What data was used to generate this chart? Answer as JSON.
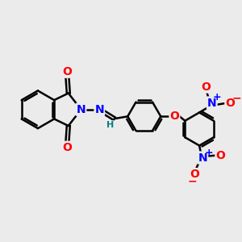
{
  "bg_color": "#ebebeb",
  "bond_color": "#000000",
  "bond_width": 1.8,
  "atom_colors": {
    "N": "#0000ff",
    "O": "#ff0000",
    "H": "#008080"
  },
  "font_size": 10,
  "font_size_small": 8,
  "figsize": [
    3.0,
    3.0
  ],
  "dpi": 100,
  "xlim": [
    0,
    10
  ],
  "ylim": [
    0,
    10
  ]
}
